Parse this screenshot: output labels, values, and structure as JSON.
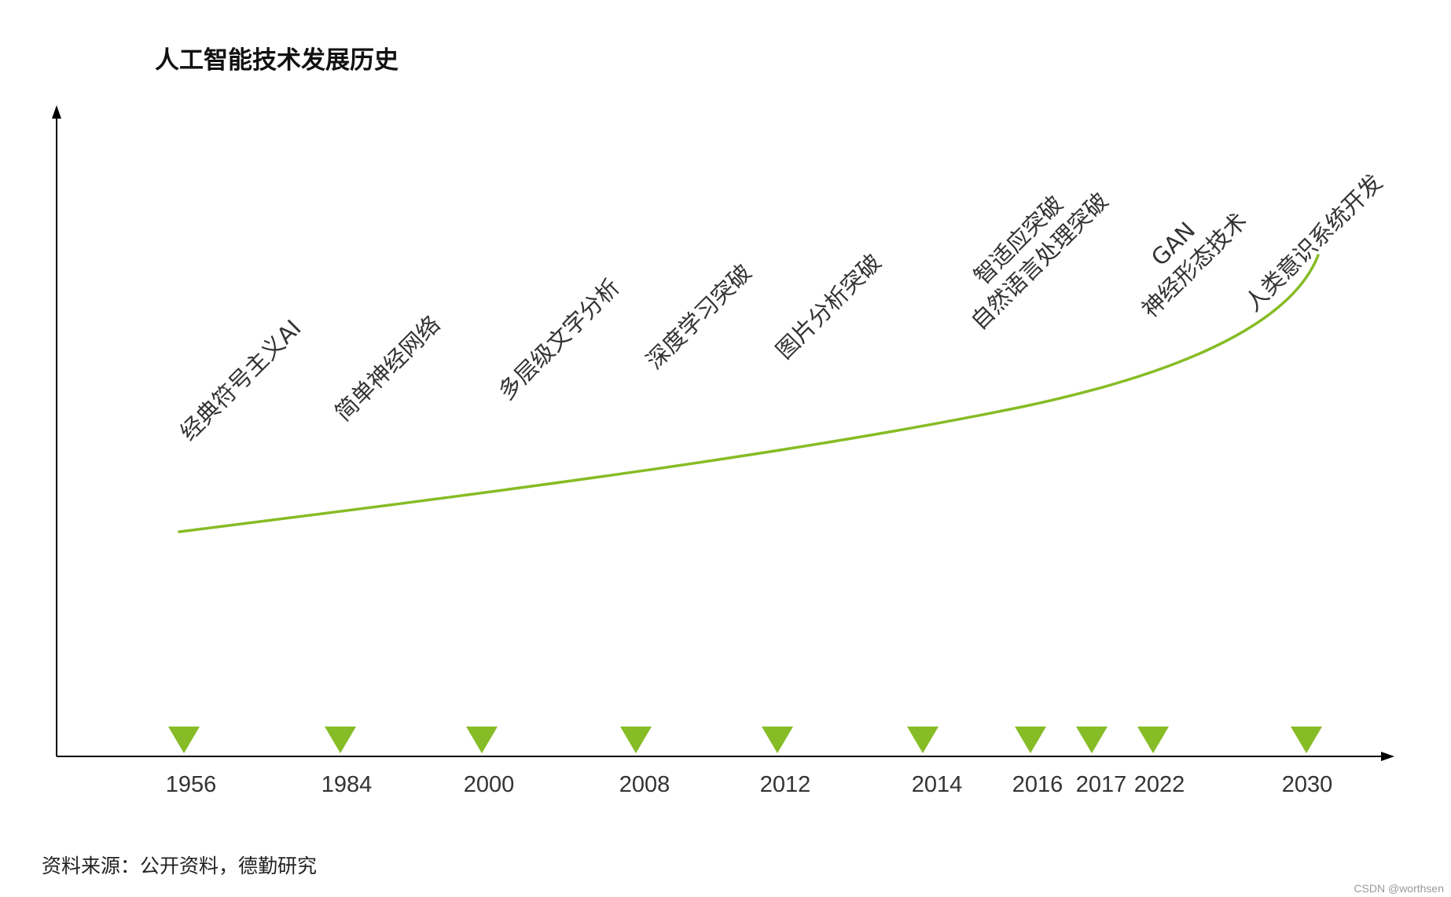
{
  "title": "人工智能技术发展历史",
  "timeline": {
    "years": [
      "1956",
      "1984",
      "2000",
      "2008",
      "2012",
      "2014",
      "2016",
      "2017",
      "2022",
      "2030"
    ]
  },
  "milestones": [
    {
      "lines": [
        "经典符号主义AI"
      ]
    },
    {
      "lines": [
        "简单神经网络"
      ]
    },
    {
      "lines": [
        "多层级文字分析"
      ]
    },
    {
      "lines": [
        "深度学习突破"
      ]
    },
    {
      "lines": [
        "图片分析突破"
      ]
    },
    {
      "lines": [
        "智适应突破",
        "自然语言处理突破"
      ]
    },
    {
      "lines": [
        "GAN",
        "神经形态技术"
      ]
    },
    {
      "lines": [
        "人类意识系统开发"
      ]
    }
  ],
  "source_note": "资料来源：公开资料，德勤研究",
  "watermark": "CSDN @worthsen",
  "colors": {
    "accent": "#86BC25",
    "axis": "#000000",
    "text": "#333333"
  }
}
